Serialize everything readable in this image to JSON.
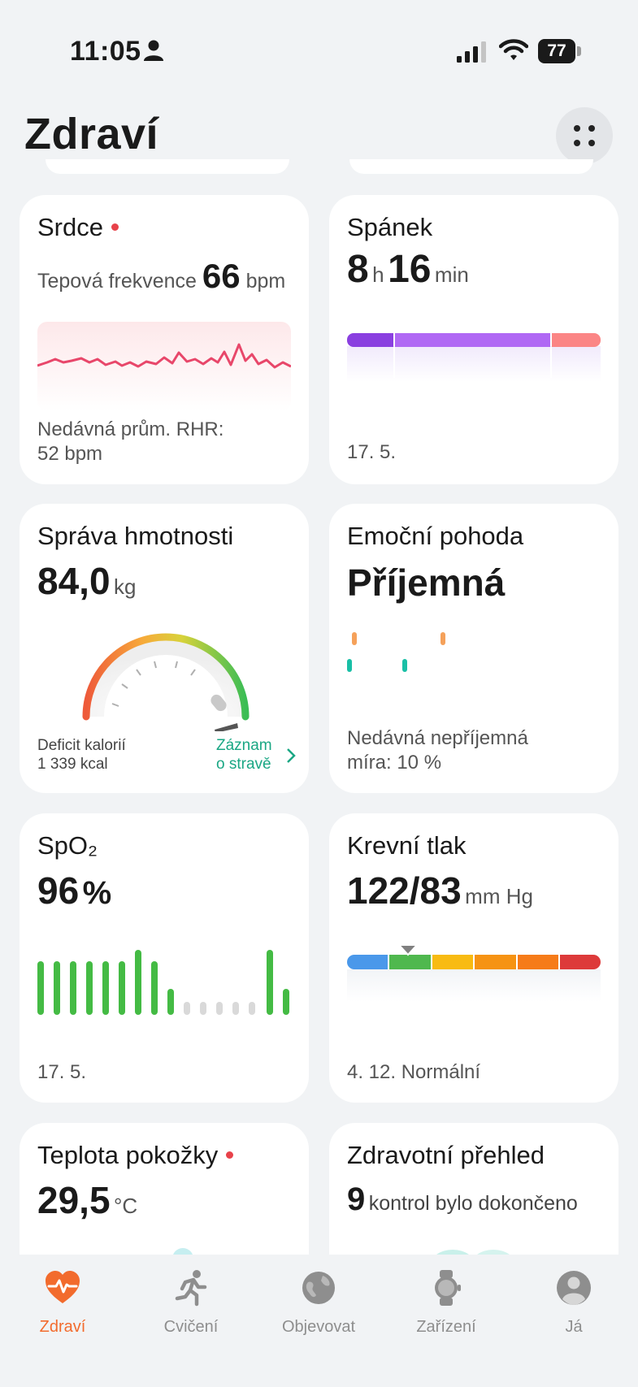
{
  "status_bar": {
    "time": "11:05",
    "battery": "77"
  },
  "header": {
    "title": "Zdraví"
  },
  "cards": {
    "heart": {
      "title": "Srdce",
      "rate_label": "Tepová frekvence",
      "rate_value": "66",
      "rate_unit": "bpm",
      "footer_line1": "Nedávná prům. RHR:",
      "footer_line2": "52 bpm",
      "color": "#e8476a"
    },
    "sleep": {
      "title": "Spánek",
      "hours": "8",
      "hours_unit": "h",
      "minutes": "16",
      "minutes_unit": "min",
      "date": "17. 5.",
      "stage_colors": [
        "#8a3fe0",
        "#b068f4",
        "#fb8585"
      ]
    },
    "weight": {
      "title": "Správa hmotnosti",
      "value": "84,0",
      "unit": "kg",
      "deficit_label": "Deficit kalorií",
      "deficit_value": "1 339 kcal",
      "link_line1": "Záznam",
      "link_line2": "o stravě",
      "link_color": "#1aa784"
    },
    "emotion": {
      "title": "Emoční pohoda",
      "value": "Příjemná",
      "footer_line1": "Nedávná nepříjemná",
      "footer_line2": "míra: 10 %",
      "colors": [
        "#f5a15a",
        "#19bfa6"
      ]
    },
    "spo2": {
      "title": "SpO₂",
      "value": "96",
      "unit": "%",
      "date": "17. 5.",
      "bar_color": "#44bb44",
      "empty_color": "#d9d9d9"
    },
    "blood_pressure": {
      "title": "Krevní tlak",
      "value": "122/83",
      "unit": "mm Hg",
      "footer": "4. 12. Normální",
      "scale_colors": [
        "#4a98ea",
        "#4fb84e",
        "#f8bb12",
        "#f69313",
        "#f67b19",
        "#dd3a3a"
      ]
    },
    "skin_temp": {
      "title": "Teplota pokožky",
      "value": "29,5",
      "unit": "°C"
    },
    "health_check": {
      "title": "Zdravotní přehled",
      "count": "9",
      "text": "kontrol bylo dokončeno"
    }
  },
  "nav": {
    "items": [
      {
        "label": "Zdraví"
      },
      {
        "label": "Cvičení"
      },
      {
        "label": "Objevovat"
      },
      {
        "label": "Zařízení"
      },
      {
        "label": "Já"
      }
    ],
    "active_color": "#f26b2d"
  }
}
